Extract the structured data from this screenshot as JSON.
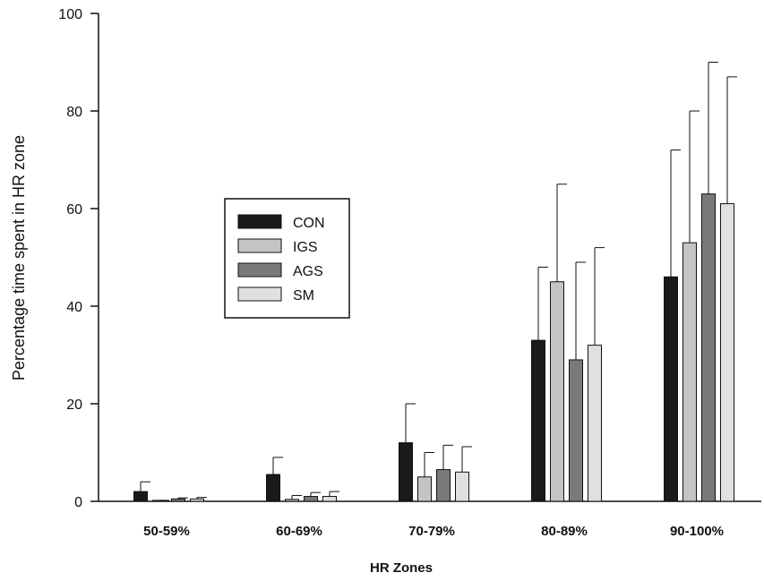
{
  "chart_data": {
    "type": "bar",
    "title": "",
    "xlabel": "HR Zones",
    "ylabel": "Percentage time spent in HR zone",
    "ylim": [
      0,
      100
    ],
    "yticks": [
      "0",
      "20",
      "40",
      "60",
      "80",
      "100"
    ],
    "grid": false,
    "legend_position": "center-left",
    "categories": [
      "50-59%",
      "60-69%",
      "70-79%",
      "80-89%",
      "90-100%"
    ],
    "series": [
      {
        "name": "CON",
        "color": "#1a1a1a",
        "values": [
          2,
          5.5,
          12,
          33,
          46
        ],
        "error_upper": [
          4,
          9,
          20,
          48,
          72
        ]
      },
      {
        "name": "IGS",
        "color": "#c4c4c4",
        "values": [
          0.2,
          0.4,
          5,
          45,
          53
        ],
        "error_upper": [
          0.2,
          1.2,
          10,
          65,
          80
        ]
      },
      {
        "name": "AGS",
        "color": "#7a7a7a",
        "values": [
          0.5,
          1,
          6.5,
          29,
          63
        ],
        "error_upper": [
          0.7,
          1.8,
          11.5,
          49,
          90
        ]
      },
      {
        "name": "SM",
        "color": "#e0e0e0",
        "values": [
          0.5,
          1,
          6,
          32,
          61
        ],
        "error_upper": [
          0.8,
          2,
          11.2,
          52,
          87
        ]
      }
    ]
  }
}
